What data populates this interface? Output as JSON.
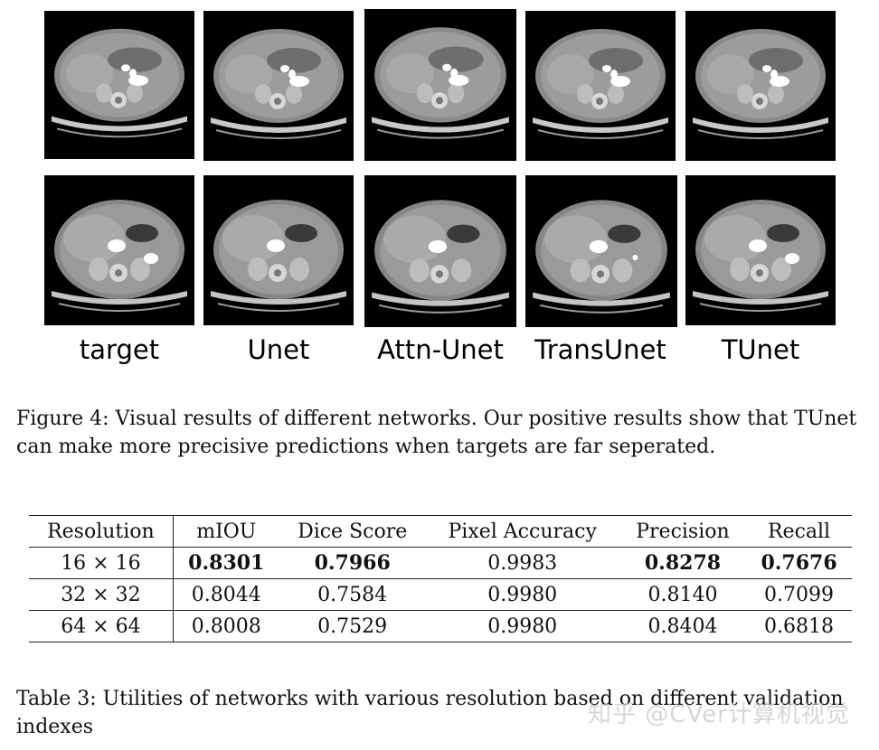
{
  "figure": {
    "column_labels": [
      "target",
      "Unet",
      "Attn-Unet",
      "TransUnet",
      "TUnet"
    ],
    "rows": [
      {
        "name": "row-1",
        "scan": "abdominal-ct-slice-upper"
      },
      {
        "name": "row-2",
        "scan": "abdominal-ct-slice-lower"
      }
    ],
    "caption": "Figure 4: Visual results of different networks. Our positive results show that TUnet can make more precisive predictions when targets are far seperated."
  },
  "table": {
    "headers": [
      "Resolution",
      "mIOU",
      "Dice Score",
      "Pixel Accuracy",
      "Precision",
      "Recall"
    ],
    "rows": [
      {
        "cells": [
          "16 × 16",
          "0.8301",
          "0.7966",
          "0.9983",
          "0.8278",
          "0.7676"
        ],
        "bold": [
          false,
          true,
          true,
          false,
          true,
          true
        ]
      },
      {
        "cells": [
          "32 × 32",
          "0.8044",
          "0.7584",
          "0.9980",
          "0.8140",
          "0.7099"
        ],
        "bold": [
          false,
          false,
          false,
          false,
          false,
          false
        ]
      },
      {
        "cells": [
          "64 × 64",
          "0.8008",
          "0.7529",
          "0.9980",
          "0.8404",
          "0.6818"
        ],
        "bold": [
          false,
          false,
          false,
          false,
          false,
          false
        ]
      }
    ],
    "caption": "Table 3: Utilities of networks with various resolution based on different validation indexes"
  },
  "watermark": "知乎 @CVer计算机视觉"
}
